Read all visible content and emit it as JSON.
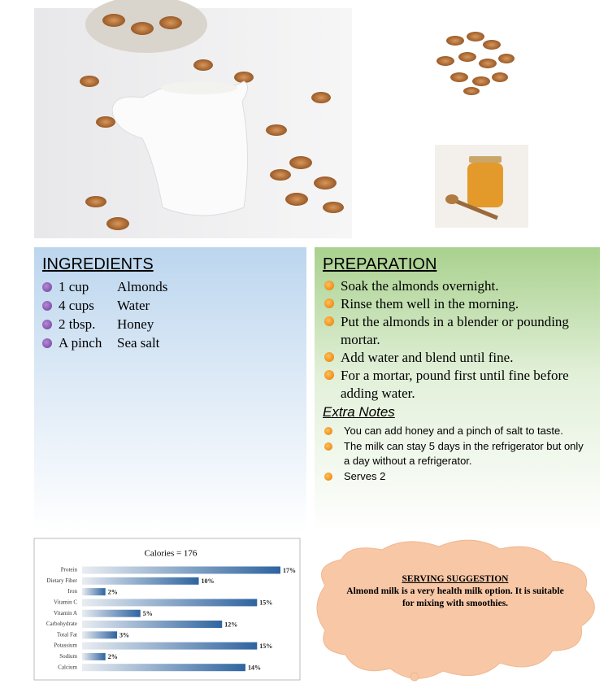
{
  "ingredients": {
    "title": "INGREDIENTS",
    "items": [
      [
        "1 cup",
        "Almonds"
      ],
      [
        "4 cups",
        "Water"
      ],
      [
        "2 tbsp.",
        "Honey"
      ],
      [
        "A pinch",
        "Sea salt"
      ]
    ]
  },
  "preparation": {
    "title": "PREPARATION",
    "steps": [
      "Soak the almonds overnight.",
      "Rinse them well in the morning.",
      "Put the almonds in a blender or pounding mortar.",
      "Add water and blend until fine.",
      "For a mortar, pound first until fine before adding water."
    ],
    "notes_title": "Extra Notes",
    "notes": [
      "You can add honey and a pinch of salt to taste.",
      "The milk can stay 5 days in the refrigerator but only a day without a refrigerator.",
      "Serves 2"
    ]
  },
  "serving": {
    "title": "SERVING SUGGESTION",
    "text": "Almond milk is a very health milk option. It is suitable for mixing with smoothies."
  },
  "chart_data": {
    "type": "bar",
    "orientation": "horizontal",
    "title": "Calories = 176",
    "categories": [
      "Protein",
      "Dietary Fiber",
      "Iron",
      "Vitamin C",
      "Vitamin A",
      "Carbohydrate",
      "Total Fat",
      "Potassium",
      "Sodium",
      "Calcium"
    ],
    "values": [
      17,
      10,
      2,
      15,
      5,
      12,
      3,
      15,
      2,
      14
    ],
    "value_labels": [
      "17%",
      "10%",
      "2%",
      "15%",
      "5%",
      "12%",
      "3%",
      "15%",
      "2%",
      "14%"
    ],
    "color": "#2e64a0"
  }
}
